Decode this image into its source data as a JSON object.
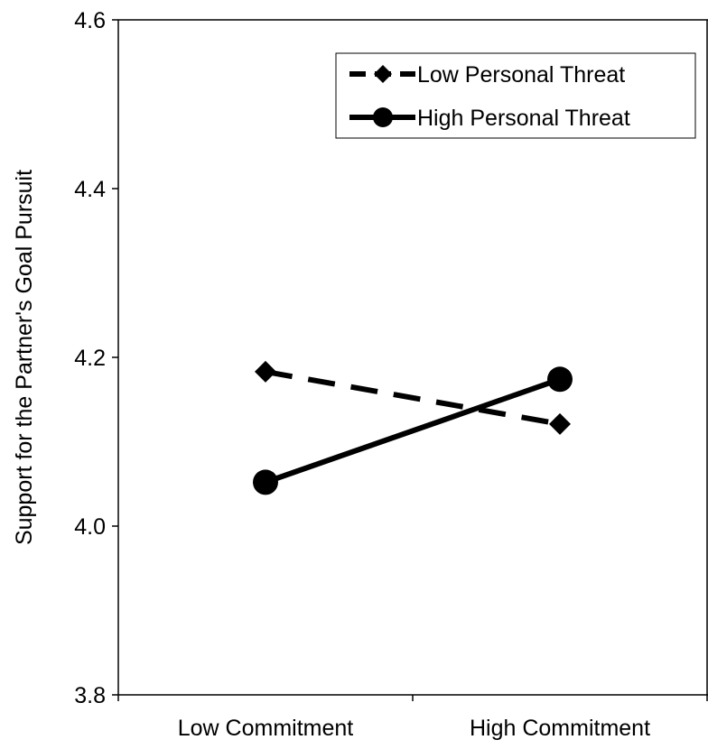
{
  "chart_data": {
    "type": "line",
    "title": "",
    "xlabel": "",
    "ylabel": "Support for the Partner's Goal Pursuit",
    "categories": [
      "Low Commitment",
      "High Commitment"
    ],
    "ylim": [
      3.8,
      4.6
    ],
    "yticks": [
      "3.8",
      "4.0",
      "4.2",
      "4.4",
      "4.6"
    ],
    "grid": false,
    "legend_position": "top-right",
    "series": [
      {
        "name": "Low Personal Threat",
        "values": [
          4.183,
          4.121
        ],
        "marker": "diamond",
        "line_style": "dashed",
        "color": "#000000"
      },
      {
        "name": "High Personal Threat",
        "values": [
          4.052,
          4.174
        ],
        "marker": "circle",
        "line_style": "solid",
        "color": "#000000"
      }
    ]
  }
}
